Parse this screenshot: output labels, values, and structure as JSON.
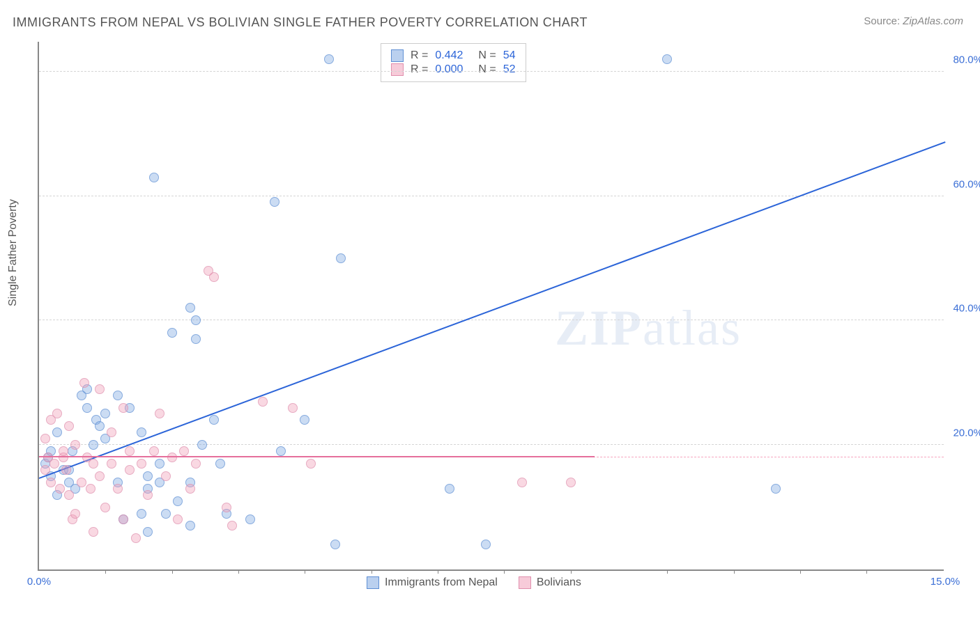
{
  "title": "IMMIGRANTS FROM NEPAL VS BOLIVIAN SINGLE FATHER POVERTY CORRELATION CHART",
  "source_label": "Source:",
  "source_value": "ZipAtlas.com",
  "y_axis_label": "Single Father Poverty",
  "watermark_zip": "ZIP",
  "watermark_atlas": "atlas",
  "chart": {
    "type": "scatter",
    "xlim": [
      0,
      15
    ],
    "ylim": [
      0,
      85
    ],
    "x_tick_labels": {
      "0": "0.0%",
      "15": "15.0%"
    },
    "x_minor_ticks": [
      1.1,
      2.2,
      3.3,
      4.4,
      5.5,
      6.6,
      7.7,
      8.8,
      10.4,
      11.5,
      12.6,
      13.7
    ],
    "y_grid_values": [
      20,
      40,
      60,
      80
    ],
    "y_tick_labels": {
      "20": "20.0%",
      "40": "40.0%",
      "60": "60.0%",
      "80": "80.0%"
    },
    "ref_line_y": 18,
    "background_color": "#ffffff",
    "grid_color": "#d5d5d5",
    "axis_color": "#888888",
    "marker_size": 14,
    "series": [
      {
        "name": "Immigrants from Nepal",
        "color": "#82aae1",
        "border_color": "#5e8fd4",
        "R": "0.442",
        "N": "54",
        "trend": {
          "x1": 0.0,
          "y1": 14.5,
          "x2": 15.0,
          "y2": 68.5,
          "color": "#2b64d8"
        },
        "points": [
          [
            0.1,
            17
          ],
          [
            0.15,
            18
          ],
          [
            0.2,
            15
          ],
          [
            0.2,
            19
          ],
          [
            0.3,
            12
          ],
          [
            0.3,
            22
          ],
          [
            0.4,
            16
          ],
          [
            0.5,
            16
          ],
          [
            0.5,
            14
          ],
          [
            0.55,
            19
          ],
          [
            0.6,
            13
          ],
          [
            0.7,
            28
          ],
          [
            0.8,
            29
          ],
          [
            0.8,
            26
          ],
          [
            0.9,
            20
          ],
          [
            0.95,
            24
          ],
          [
            1.0,
            23
          ],
          [
            1.1,
            25
          ],
          [
            1.1,
            21
          ],
          [
            1.3,
            14
          ],
          [
            1.3,
            28
          ],
          [
            1.4,
            8
          ],
          [
            1.5,
            26
          ],
          [
            1.7,
            9
          ],
          [
            1.7,
            22
          ],
          [
            1.8,
            6
          ],
          [
            1.8,
            15
          ],
          [
            1.8,
            13
          ],
          [
            1.9,
            63
          ],
          [
            2.0,
            17
          ],
          [
            2.0,
            14
          ],
          [
            2.1,
            9
          ],
          [
            2.2,
            38
          ],
          [
            2.3,
            11
          ],
          [
            2.5,
            42
          ],
          [
            2.5,
            14
          ],
          [
            2.5,
            7
          ],
          [
            2.6,
            37
          ],
          [
            2.6,
            40
          ],
          [
            2.7,
            20
          ],
          [
            2.9,
            24
          ],
          [
            3.0,
            17
          ],
          [
            3.1,
            9
          ],
          [
            3.5,
            8
          ],
          [
            3.9,
            59
          ],
          [
            4.0,
            19
          ],
          [
            4.4,
            24
          ],
          [
            4.8,
            82
          ],
          [
            4.9,
            4
          ],
          [
            5.0,
            50
          ],
          [
            6.8,
            13
          ],
          [
            7.4,
            4
          ],
          [
            10.4,
            82
          ],
          [
            12.2,
            13
          ]
        ]
      },
      {
        "name": "Bolivians",
        "color": "#f0a0b9",
        "border_color": "#e08fad",
        "R": "0.000",
        "N": "52",
        "trend": {
          "x1": 0.0,
          "y1": 18.0,
          "x2": 9.2,
          "y2": 18.0,
          "color": "#e56f9c"
        },
        "points": [
          [
            0.1,
            16
          ],
          [
            0.1,
            21
          ],
          [
            0.15,
            18
          ],
          [
            0.2,
            14
          ],
          [
            0.2,
            24
          ],
          [
            0.25,
            17
          ],
          [
            0.3,
            25
          ],
          [
            0.35,
            13
          ],
          [
            0.4,
            18
          ],
          [
            0.4,
            19
          ],
          [
            0.45,
            16
          ],
          [
            0.5,
            12
          ],
          [
            0.5,
            23
          ],
          [
            0.55,
            8
          ],
          [
            0.6,
            9
          ],
          [
            0.6,
            20
          ],
          [
            0.7,
            14
          ],
          [
            0.75,
            30
          ],
          [
            0.8,
            18
          ],
          [
            0.85,
            13
          ],
          [
            0.9,
            17
          ],
          [
            0.9,
            6
          ],
          [
            1.0,
            29
          ],
          [
            1.0,
            15
          ],
          [
            1.1,
            10
          ],
          [
            1.2,
            22
          ],
          [
            1.2,
            17
          ],
          [
            1.3,
            13
          ],
          [
            1.4,
            8
          ],
          [
            1.4,
            26
          ],
          [
            1.5,
            19
          ],
          [
            1.5,
            16
          ],
          [
            1.6,
            5
          ],
          [
            1.7,
            17
          ],
          [
            1.8,
            12
          ],
          [
            1.9,
            19
          ],
          [
            2.0,
            25
          ],
          [
            2.1,
            15
          ],
          [
            2.2,
            18
          ],
          [
            2.3,
            8
          ],
          [
            2.4,
            19
          ],
          [
            2.5,
            13
          ],
          [
            2.6,
            17
          ],
          [
            2.8,
            48
          ],
          [
            2.9,
            47
          ],
          [
            3.1,
            10
          ],
          [
            3.2,
            7
          ],
          [
            3.7,
            27
          ],
          [
            4.2,
            26
          ],
          [
            4.5,
            17
          ],
          [
            8.0,
            14
          ],
          [
            8.8,
            14
          ]
        ]
      }
    ]
  },
  "legend_top": {
    "R_label": "R =",
    "N_label": "N ="
  }
}
